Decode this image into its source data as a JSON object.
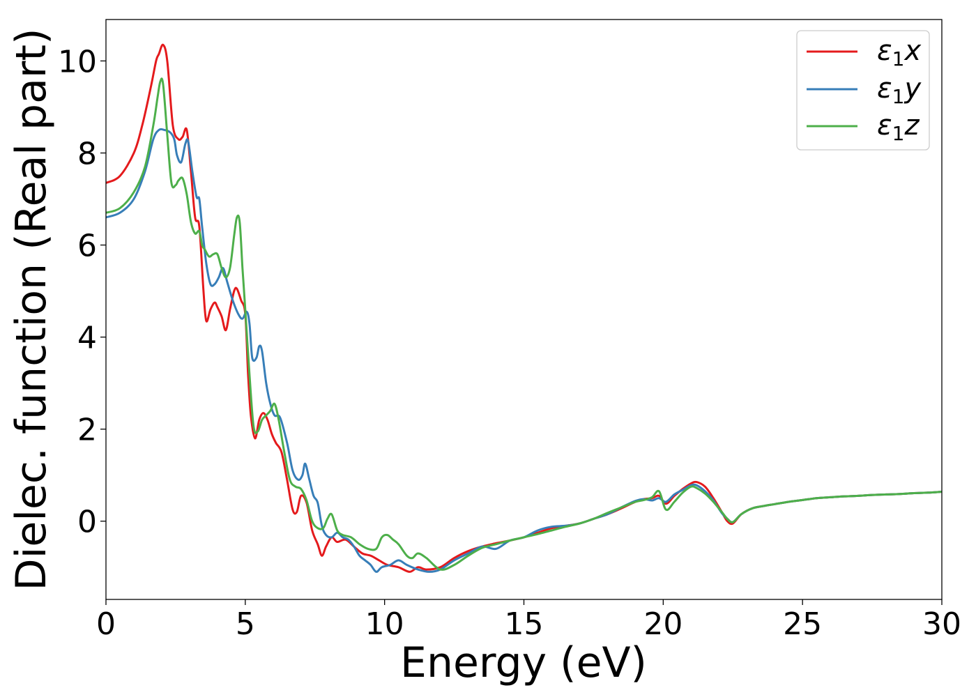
{
  "chart_data": {
    "type": "line",
    "title": "",
    "xlabel": "Energy (eV)",
    "ylabel": "Dielec. function (Real part)",
    "xlim": [
      0,
      30
    ],
    "ylim": [
      -1.7,
      10.9
    ],
    "xticks": [
      0,
      5,
      10,
      15,
      20,
      25,
      30
    ],
    "xtick_labels": [
      "0",
      "5",
      "10",
      "15",
      "20",
      "25",
      "30"
    ],
    "yticks": [
      0,
      2,
      4,
      6,
      8,
      10
    ],
    "ytick_labels": [
      "0",
      "2",
      "4",
      "6",
      "8",
      "10"
    ],
    "grid": false,
    "legend_position": "top-right",
    "series": [
      {
        "name": "ε1x",
        "legend_symbol": "ε",
        "legend_sub": "1",
        "legend_var": "x",
        "color": "#e41a1c",
        "x": [
          0,
          0.5,
          1.0,
          1.3,
          1.6,
          1.8,
          1.9,
          2.05,
          2.2,
          2.4,
          2.6,
          2.75,
          2.9,
          3.05,
          3.2,
          3.35,
          3.5,
          3.6,
          3.75,
          3.9,
          4.0,
          4.15,
          4.3,
          4.45,
          4.6,
          4.7,
          4.85,
          5.0,
          5.1,
          5.2,
          5.35,
          5.5,
          5.65,
          5.8,
          5.95,
          6.1,
          6.3,
          6.5,
          6.7,
          6.85,
          7.0,
          7.2,
          7.4,
          7.6,
          7.75,
          7.9,
          8.1,
          8.3,
          8.6,
          8.9,
          9.2,
          9.5,
          9.8,
          10.1,
          10.5,
          10.9,
          11.2,
          11.5,
          12.0,
          12.5,
          13.0,
          13.5,
          14.0,
          14.5,
          15.0,
          15.5,
          16.0,
          16.5,
          17.0,
          17.5,
          18.0,
          18.5,
          19.0,
          19.3,
          19.6,
          19.85,
          20.1,
          20.4,
          20.7,
          21.0,
          21.2,
          21.5,
          21.8,
          22.1,
          22.3,
          22.5,
          22.8,
          23.2,
          23.6,
          24.0,
          24.5,
          25.0,
          25.5,
          26.0,
          26.5,
          27.0,
          27.5,
          28.0,
          28.5,
          29.0,
          29.5,
          30.0
        ],
        "y": [
          7.35,
          7.5,
          8.0,
          8.6,
          9.4,
          10.0,
          10.15,
          10.35,
          10.0,
          8.6,
          8.3,
          8.35,
          8.5,
          7.6,
          6.6,
          6.4,
          5.0,
          4.35,
          4.6,
          4.75,
          4.65,
          4.45,
          4.15,
          4.6,
          5.0,
          5.05,
          4.8,
          4.5,
          3.2,
          2.3,
          1.8,
          2.2,
          2.35,
          2.2,
          1.9,
          1.7,
          1.5,
          0.9,
          0.25,
          0.2,
          0.55,
          0.4,
          -0.2,
          -0.5,
          -0.75,
          -0.55,
          -0.35,
          -0.45,
          -0.4,
          -0.55,
          -0.7,
          -0.75,
          -0.85,
          -0.95,
          -1.0,
          -1.1,
          -1.0,
          -1.05,
          -1.0,
          -0.8,
          -0.65,
          -0.55,
          -0.48,
          -0.42,
          -0.35,
          -0.25,
          -0.15,
          -0.1,
          -0.05,
          0.05,
          0.15,
          0.28,
          0.42,
          0.48,
          0.5,
          0.55,
          0.38,
          0.55,
          0.7,
          0.82,
          0.85,
          0.75,
          0.5,
          0.2,
          0.0,
          -0.05,
          0.15,
          0.28,
          0.33,
          0.37,
          0.42,
          0.46,
          0.5,
          0.52,
          0.54,
          0.55,
          0.57,
          0.58,
          0.59,
          0.61,
          0.62,
          0.64
        ]
      },
      {
        "name": "ε1y",
        "legend_symbol": "ε",
        "legend_sub": "1",
        "legend_var": "y",
        "color": "#377eb8",
        "x": [
          0,
          0.5,
          1.0,
          1.4,
          1.7,
          1.9,
          2.1,
          2.3,
          2.45,
          2.55,
          2.7,
          2.85,
          2.95,
          3.1,
          3.25,
          3.35,
          3.45,
          3.6,
          3.75,
          3.9,
          4.05,
          4.2,
          4.35,
          4.55,
          4.75,
          4.9,
          5.05,
          5.15,
          5.25,
          5.4,
          5.5,
          5.6,
          5.75,
          5.9,
          6.05,
          6.25,
          6.5,
          6.7,
          6.9,
          7.05,
          7.15,
          7.3,
          7.45,
          7.6,
          7.75,
          7.9,
          8.1,
          8.3,
          8.5,
          8.7,
          8.9,
          9.1,
          9.3,
          9.5,
          9.7,
          9.9,
          10.2,
          10.5,
          10.8,
          11.2,
          11.6,
          12.0,
          12.5,
          13.0,
          13.5,
          14.0,
          14.5,
          15.0,
          15.5,
          16.0,
          16.5,
          17.0,
          17.5,
          18.0,
          18.5,
          19.0,
          19.3,
          19.6,
          19.85,
          20.1,
          20.4,
          20.7,
          21.0,
          21.2,
          21.5,
          21.8,
          22.1,
          22.3,
          22.5,
          22.8,
          23.2,
          23.6,
          24.0,
          24.5,
          25.0,
          25.5,
          26.0,
          26.5,
          27.0,
          27.5,
          28.0,
          28.5,
          29.0,
          29.5,
          30.0
        ],
        "y": [
          6.6,
          6.7,
          7.0,
          7.6,
          8.3,
          8.5,
          8.5,
          8.45,
          8.3,
          7.95,
          7.8,
          8.2,
          8.25,
          7.6,
          7.05,
          7.0,
          6.4,
          5.6,
          5.15,
          5.15,
          5.3,
          5.5,
          5.2,
          4.8,
          4.5,
          4.4,
          4.55,
          4.3,
          3.55,
          3.55,
          3.8,
          3.7,
          3.0,
          2.55,
          2.3,
          2.25,
          1.7,
          1.1,
          0.9,
          1.0,
          1.25,
          0.9,
          0.55,
          0.4,
          -0.1,
          -0.3,
          -0.35,
          -0.25,
          -0.35,
          -0.4,
          -0.55,
          -0.75,
          -0.85,
          -0.95,
          -1.1,
          -1.0,
          -0.95,
          -0.85,
          -0.95,
          -1.05,
          -1.1,
          -1.05,
          -0.85,
          -0.7,
          -0.55,
          -0.6,
          -0.42,
          -0.35,
          -0.2,
          -0.12,
          -0.1,
          -0.05,
          0.05,
          0.15,
          0.3,
          0.44,
          0.48,
          0.45,
          0.5,
          0.42,
          0.58,
          0.68,
          0.78,
          0.78,
          0.65,
          0.45,
          0.18,
          0.05,
          -0.02,
          0.15,
          0.28,
          0.33,
          0.37,
          0.42,
          0.46,
          0.5,
          0.52,
          0.54,
          0.55,
          0.57,
          0.58,
          0.59,
          0.61,
          0.62,
          0.64
        ]
      },
      {
        "name": "ε1z",
        "legend_symbol": "ε",
        "legend_sub": "1",
        "legend_var": "z",
        "color": "#4daf4a",
        "x": [
          0,
          0.5,
          1.0,
          1.4,
          1.7,
          1.85,
          1.95,
          2.05,
          2.2,
          2.35,
          2.5,
          2.6,
          2.75,
          2.9,
          3.05,
          3.2,
          3.35,
          3.45,
          3.55,
          3.7,
          3.85,
          4.0,
          4.15,
          4.3,
          4.45,
          4.6,
          4.7,
          4.8,
          4.9,
          5.0,
          5.15,
          5.3,
          5.45,
          5.6,
          5.75,
          5.9,
          6.05,
          6.2,
          6.4,
          6.6,
          6.8,
          7.0,
          7.2,
          7.4,
          7.6,
          7.8,
          7.95,
          8.1,
          8.3,
          8.5,
          8.8,
          9.1,
          9.4,
          9.7,
          9.9,
          10.1,
          10.3,
          10.5,
          10.8,
          11.0,
          11.2,
          11.5,
          12.0,
          12.5,
          13.0,
          13.5,
          14.0,
          14.5,
          15.0,
          15.5,
          16.0,
          16.5,
          17.0,
          17.5,
          18.0,
          18.5,
          19.0,
          19.3,
          19.6,
          19.85,
          20.1,
          20.4,
          20.7,
          21.0,
          21.2,
          21.5,
          21.8,
          22.1,
          22.3,
          22.5,
          22.8,
          23.2,
          23.6,
          24.0,
          24.5,
          25.0,
          25.5,
          26.0,
          26.5,
          27.0,
          27.5,
          28.0,
          28.5,
          29.0,
          29.5,
          30.0
        ],
        "y": [
          6.7,
          6.8,
          7.15,
          7.7,
          8.6,
          9.2,
          9.55,
          9.5,
          8.4,
          7.35,
          7.3,
          7.4,
          7.45,
          7.1,
          6.5,
          6.25,
          6.3,
          6.0,
          5.9,
          5.75,
          5.8,
          5.8,
          5.5,
          5.3,
          5.5,
          6.2,
          6.6,
          6.5,
          5.5,
          4.6,
          3.2,
          2.05,
          1.95,
          2.2,
          2.3,
          2.4,
          2.55,
          2.2,
          1.5,
          0.9,
          0.75,
          0.7,
          0.45,
          0.0,
          -0.15,
          -0.15,
          0.05,
          0.15,
          -0.2,
          -0.3,
          -0.35,
          -0.5,
          -0.6,
          -0.6,
          -0.35,
          -0.3,
          -0.4,
          -0.5,
          -0.75,
          -0.8,
          -0.7,
          -0.8,
          -1.05,
          -0.95,
          -0.75,
          -0.58,
          -0.5,
          -0.42,
          -0.35,
          -0.28,
          -0.2,
          -0.12,
          -0.05,
          0.05,
          0.18,
          0.3,
          0.42,
          0.46,
          0.52,
          0.65,
          0.25,
          0.42,
          0.62,
          0.75,
          0.72,
          0.6,
          0.42,
          0.2,
          0.05,
          -0.02,
          0.15,
          0.28,
          0.33,
          0.37,
          0.42,
          0.46,
          0.5,
          0.52,
          0.54,
          0.55,
          0.57,
          0.58,
          0.59,
          0.61,
          0.62,
          0.64
        ]
      }
    ]
  }
}
